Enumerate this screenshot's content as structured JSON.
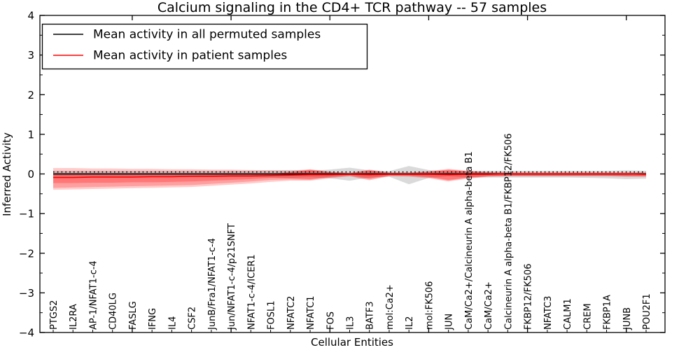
{
  "chart_data": {
    "type": "line+area",
    "title": "Calcium signaling in the CD4+ TCR pathway -- 57 samples",
    "xlabel": "Cellular Entities",
    "ylabel": "Inferred Activity",
    "ylim": [
      -4,
      4
    ],
    "ytick_step": 1,
    "ytick_minor_step": 0.5,
    "xticks_major_positions": [
      5,
      10,
      15,
      20,
      25,
      30
    ],
    "legend_position": "upper left",
    "grid": "off",
    "dotted_reference_line": 0.05,
    "categories": [
      "PTGS2",
      "IL2RA",
      "AP-1/NFAT1-c-4",
      "CD40LG",
      "FASLG",
      "IFNG",
      "IL4",
      "CSF2",
      "JunB/Fra1/NFAT1-c-4",
      "Jun/NFAT1-c-4/p21SNFT",
      "NFAT1-c-4/ICER1",
      "FOSL1",
      "NFATC2",
      "NFATC1",
      "FOS",
      "IL3",
      "BATF3",
      "mol:Ca2+",
      "IL2",
      "mol:FK506",
      "JUN",
      "CaM/Ca2+/Calcineurin A alpha-beta B1",
      "CaM/Ca2+",
      "Calcineurin A alpha-beta B1/FKBP12/FK506",
      "FKBP12/FK506",
      "NFATC3",
      "CALM1",
      "CREM",
      "FKBP1A",
      "JUNB",
      "POU2F1"
    ],
    "series": [
      {
        "name": "Mean activity in all permuted samples",
        "color": "#000000",
        "values": [
          0,
          0,
          0,
          0,
          0,
          0,
          0,
          0,
          0,
          0,
          0,
          0,
          0,
          0,
          0,
          0,
          0,
          0,
          0,
          0,
          0,
          0,
          0,
          0,
          0,
          0,
          0,
          0,
          0,
          0,
          0
        ]
      },
      {
        "name": "Mean activity in patient samples",
        "color": "#ff0000",
        "values": [
          -0.09,
          -0.09,
          -0.08,
          -0.08,
          -0.08,
          -0.07,
          -0.07,
          -0.06,
          -0.06,
          -0.05,
          -0.05,
          -0.04,
          -0.03,
          -0.02,
          -0.02,
          -0.01,
          -0.02,
          -0.01,
          -0.01,
          -0.01,
          -0.02,
          -0.01,
          -0.01,
          0,
          0,
          0,
          0,
          0,
          0,
          0,
          -0.01
        ]
      }
    ],
    "bands": [
      {
        "name": "permuted-samples-spread",
        "color": "#a8a8a8",
        "opacity": 0.42,
        "top": [
          0.08,
          0.08,
          0.08,
          0.08,
          0.08,
          0.08,
          0.08,
          0.08,
          0.08,
          0.08,
          0.08,
          0.09,
          0.1,
          0.08,
          0.11,
          0.16,
          0.09,
          0.07,
          0.2,
          0.1,
          0.06,
          0.08,
          0.08,
          0.08,
          0.08,
          0.08,
          0.08,
          0.08,
          0.08,
          0.09,
          0.08
        ],
        "bottom": [
          -0.08,
          -0.08,
          -0.08,
          -0.08,
          -0.08,
          -0.08,
          -0.08,
          -0.08,
          -0.08,
          -0.08,
          -0.08,
          -0.09,
          -0.1,
          -0.08,
          -0.11,
          -0.17,
          -0.09,
          -0.07,
          -0.26,
          -0.1,
          -0.06,
          -0.09,
          -0.09,
          -0.09,
          -0.09,
          -0.09,
          -0.09,
          -0.1,
          -0.11,
          -0.13,
          -0.12
        ]
      },
      {
        "name": "patient-samples-spread-outer",
        "color": "#ff0000",
        "opacity": 0.2,
        "top": [
          0.15,
          0.15,
          0.14,
          0.14,
          0.13,
          0.13,
          0.12,
          0.12,
          0.11,
          0.11,
          0.1,
          0.09,
          0.08,
          0.12,
          0.06,
          0.03,
          0.11,
          0.04,
          0.04,
          0.07,
          0.13,
          0.08,
          0.05,
          0.04,
          0.04,
          0.04,
          0.04,
          0.04,
          0.04,
          0.04,
          0.04
        ],
        "bottom": [
          -0.4,
          -0.39,
          -0.38,
          -0.37,
          -0.36,
          -0.35,
          -0.34,
          -0.33,
          -0.3,
          -0.27,
          -0.24,
          -0.2,
          -0.17,
          -0.17,
          -0.11,
          -0.06,
          -0.16,
          -0.06,
          -0.07,
          -0.11,
          -0.19,
          -0.12,
          -0.07,
          -0.06,
          -0.06,
          -0.06,
          -0.06,
          -0.06,
          -0.06,
          -0.07,
          -0.07
        ]
      },
      {
        "name": "patient-samples-spread-mid",
        "color": "#ff0000",
        "opacity": 0.22,
        "top": [
          -0.03,
          -0.03,
          -0.03,
          -0.03,
          -0.03,
          -0.03,
          -0.03,
          -0.03,
          -0.02,
          -0.02,
          -0.02,
          -0.01,
          0.06,
          0.11,
          0.05,
          0.02,
          0.1,
          0.03,
          0.03,
          0.06,
          0.11,
          0.07,
          0.04,
          0.03,
          0.03,
          0.03,
          0.03,
          0.03,
          0.03,
          0.03,
          0.03
        ],
        "bottom": [
          -0.35,
          -0.34,
          -0.33,
          -0.32,
          -0.31,
          -0.3,
          -0.29,
          -0.28,
          -0.25,
          -0.22,
          -0.19,
          -0.15,
          -0.14,
          -0.15,
          -0.09,
          -0.05,
          -0.14,
          -0.05,
          -0.05,
          -0.09,
          -0.17,
          -0.1,
          -0.06,
          -0.05,
          -0.05,
          -0.05,
          -0.05,
          -0.05,
          -0.05,
          -0.06,
          -0.06
        ]
      },
      {
        "name": "patient-samples-spread-inner",
        "color": "#ff0000",
        "opacity": 0.25,
        "top": [
          -0.01,
          -0.01,
          -0.01,
          -0.01,
          -0.01,
          -0.01,
          -0.01,
          -0.01,
          -0.01,
          -0.01,
          -0.01,
          0.0,
          0.04,
          0.1,
          0.04,
          0.01,
          0.08,
          0.02,
          0.02,
          0.05,
          0.1,
          0.06,
          0.03,
          0.02,
          0.02,
          0.02,
          0.02,
          0.02,
          0.02,
          0.02,
          0.02
        ],
        "bottom": [
          -0.23,
          -0.23,
          -0.22,
          -0.22,
          -0.21,
          -0.21,
          -0.2,
          -0.19,
          -0.17,
          -0.15,
          -0.13,
          -0.1,
          -0.11,
          -0.13,
          -0.07,
          -0.03,
          -0.11,
          -0.03,
          -0.04,
          -0.07,
          -0.15,
          -0.09,
          -0.05,
          -0.04,
          -0.04,
          -0.04,
          -0.04,
          -0.04,
          -0.04,
          -0.05,
          -0.05
        ]
      }
    ]
  }
}
